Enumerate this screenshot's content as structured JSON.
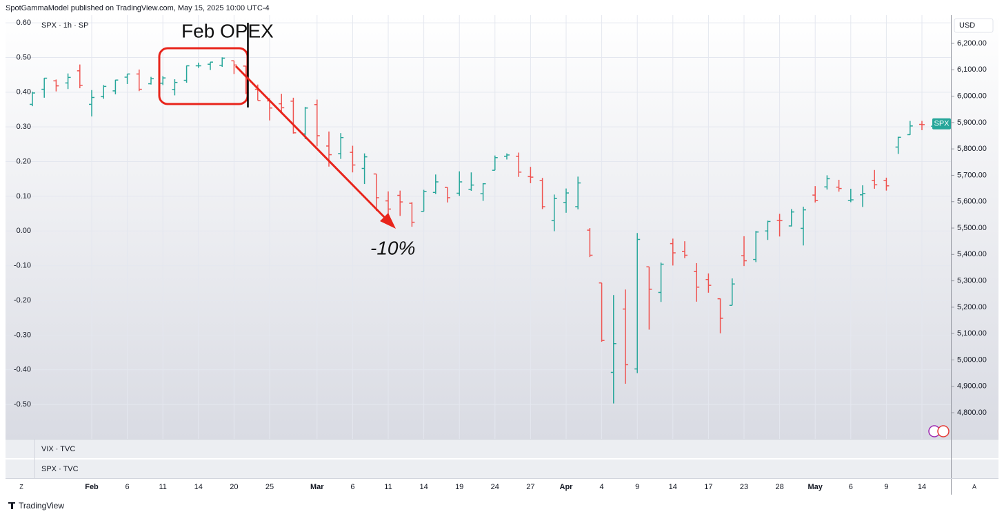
{
  "chart_data": {
    "type": "ohlc",
    "header": "SpotGammaModel published on TradingView.com, May 15, 2025 10:00 UTC-4",
    "title": "SPX · 1h · SP",
    "currency": "USD",
    "categories": [
      null,
      null,
      null,
      null,
      null,
      "Feb",
      null,
      null,
      "6",
      null,
      null,
      "11",
      null,
      null,
      "14",
      null,
      null,
      "20",
      null,
      null,
      "25",
      null,
      null,
      null,
      "Mar",
      null,
      null,
      "6",
      null,
      null,
      "11",
      null,
      null,
      "14",
      null,
      null,
      "19",
      null,
      null,
      "24",
      null,
      null,
      "27",
      null,
      null,
      "Apr",
      null,
      null,
      "4",
      null,
      null,
      "9",
      null,
      null,
      "14",
      null,
      null,
      "17",
      null,
      null,
      "23",
      null,
      null,
      "28",
      null,
      null,
      "May",
      null,
      null,
      "6",
      null,
      null,
      "9",
      null,
      null,
      "14",
      null
    ],
    "series": [
      {
        "name": "SPX",
        "open": [
          5969,
          6026,
          6058,
          6050,
          6096,
          5969,
          5998,
          6020,
          6072,
          6084,
          6047,
          6049,
          6025,
          6060,
          6115,
          6121,
          6117,
          6134,
          6114,
          6026,
          5982,
          5971,
          5981,
          5857,
          5968,
          5811,
          5782,
          5787,
          5726,
          5705,
          5603,
          5624,
          5594,
          5563,
          5635,
          5654,
          5632,
          5647,
          5630,
          5719,
          5772,
          5772,
          5695,
          5680,
          5528,
          5597,
          5581,
          5492,
          5292,
          4953,
          5193,
          4966,
          5353,
          5256,
          5441,
          5411,
          5335,
          5305,
          5232,
          5207,
          5395,
          5381,
          5489,
          5529,
          5508,
          5499,
          5625,
          5656,
          5655,
          5605,
          5626,
          5680,
          5680,
          5807,
          5854,
          5893,
          5886
        ],
        "high": [
          6017,
          6069,
          6063,
          6086,
          6120,
          6023,
          6042,
          6062,
          6084,
          6101,
          6073,
          6076,
          6064,
          6116,
          6127,
          6129,
          6147,
          6134,
          6115,
          6044,
          5992,
          6009,
          5994,
          5959,
          5987,
          5866,
          5860,
          5812,
          5783,
          5705,
          5639,
          5642,
          5598,
          5645,
          5703,
          5654,
          5715,
          5711,
          5670,
          5775,
          5783,
          5786,
          5732,
          5690,
          5627,
          5650,
          5695,
          5500,
          5292,
          5246,
          5267,
          5481,
          5353,
          5369,
          5460,
          5450,
          5367,
          5328,
          5233,
          5309,
          5469,
          5489,
          5528,
          5554,
          5572,
          5581,
          5659,
          5700,
          5683,
          5649,
          5662,
          5720,
          5691,
          5846,
          5906,
          5906,
          5900
        ],
        "low": [
          5962,
          5994,
          6018,
          6027,
          6030,
          5923,
          5990,
          6007,
          6046,
          6019,
          6044,
          6042,
          6003,
          6051,
          6107,
          6099,
          6111,
          6084,
          6008,
          5984,
          5908,
          5932,
          5858,
          5837,
          5810,
          5733,
          5762,
          5711,
          5667,
          5565,
          5529,
          5546,
          5505,
          5563,
          5629,
          5597,
          5622,
          5641,
          5603,
          5719,
          5760,
          5694,
          5670,
          5572,
          5488,
          5558,
          5571,
          5390,
          5069,
          4835,
          4910,
          4950,
          5115,
          5220,
          5358,
          5386,
          5221,
          5255,
          5101,
          5207,
          5356,
          5371,
          5455,
          5468,
          5506,
          5434,
          5597,
          5646,
          5638,
          5598,
          5580,
          5649,
          5642,
          5781,
          5853,
          5871,
          5880
        ],
        "close": [
          6012,
          6068,
          6039,
          6071,
          6041,
          5995,
          6037,
          6061,
          6084,
          6026,
          6066,
          6069,
          6052,
          6115,
          6115,
          6129,
          6144,
          6118,
          6013,
          5983,
          5955,
          5956,
          5861,
          5955,
          5850,
          5778,
          5843,
          5739,
          5770,
          5615,
          5572,
          5599,
          5522,
          5639,
          5675,
          5615,
          5675,
          5663,
          5668,
          5767,
          5777,
          5712,
          5693,
          5581,
          5612,
          5633,
          5671,
          5397,
          5074,
          5062,
          4982,
          5457,
          5268,
          5363,
          5406,
          5397,
          5276,
          5283,
          5158,
          5288,
          5376,
          5485,
          5525,
          5528,
          5561,
          5569,
          5604,
          5687,
          5650,
          5607,
          5631,
          5664,
          5660,
          5844,
          5887,
          5892,
          5895
        ]
      }
    ],
    "up_color": "#26a69a",
    "down_color": "#ef5350",
    "ylim": [
      4701,
      6307
    ],
    "yticks": [
      {
        "value": 4800,
        "label": "4,800.00"
      },
      {
        "value": 4900,
        "label": "4,900.00"
      },
      {
        "value": 5000,
        "label": "5,000.00"
      },
      {
        "value": 5100,
        "label": "5,100.00"
      },
      {
        "value": 5200,
        "label": "5,200.00"
      },
      {
        "value": 5300,
        "label": "5,300.00"
      },
      {
        "value": 5400,
        "label": "5,400.00"
      },
      {
        "value": 5500,
        "label": "5,500.00"
      },
      {
        "value": 5600,
        "label": "5,600.00"
      },
      {
        "value": 5700,
        "label": "5,700.00"
      },
      {
        "value": 5800,
        "label": "5,800.00"
      },
      {
        "value": 5900,
        "label": "5,900.00"
      },
      {
        "value": 6000,
        "label": "6,000.00"
      },
      {
        "value": 6100,
        "label": "6,100.00"
      },
      {
        "value": 6200,
        "label": "6,200.00"
      }
    ],
    "y2lim": [
      -0.599,
      0.622
    ],
    "y2ticks": [
      {
        "value": 0.6,
        "label": "0.60"
      },
      {
        "value": 0.5,
        "label": "0.50"
      },
      {
        "value": 0.4,
        "label": "0.40"
      },
      {
        "value": 0.3,
        "label": "0.30"
      },
      {
        "value": 0.2,
        "label": "0.20"
      },
      {
        "value": 0.1,
        "label": "0.10"
      },
      {
        "value": 0,
        "label": "0.00"
      },
      {
        "value": -0.1,
        "label": "-0.10"
      },
      {
        "value": -0.2,
        "label": "-0.20"
      },
      {
        "value": -0.3,
        "label": "-0.30"
      },
      {
        "value": -0.4,
        "label": "-0.40"
      },
      {
        "value": -0.5,
        "label": "-0.50"
      }
    ],
    "grid": true,
    "annotations": [
      "Feb OPEX",
      "-10%"
    ],
    "panes": [
      "VIX · TVC",
      "SPX · TVC"
    ],
    "scale_buttons": [
      "Z",
      "A"
    ],
    "brand": "TradingView"
  }
}
